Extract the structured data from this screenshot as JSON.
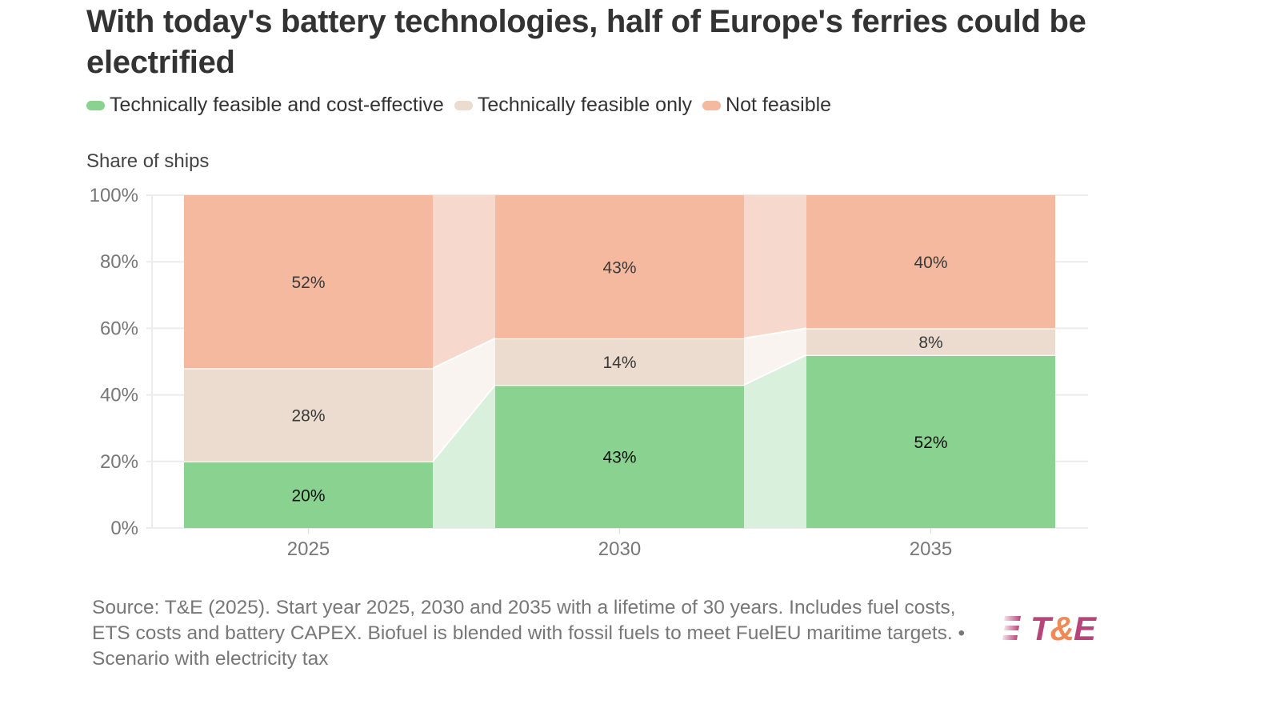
{
  "chart_data": {
    "type": "bar",
    "stacked": true,
    "normalized": true,
    "title": "With today's battery technologies, half of Europe's ferries could be electrified",
    "ylabel": "Share of ships",
    "xlabel": "",
    "categories": [
      "2025",
      "2030",
      "2035"
    ],
    "series": [
      {
        "name": "Technically feasible and cost-effective",
        "color": "#8ad28f",
        "connector_color": "#d8f0dc",
        "label_class": "dark",
        "values": [
          20,
          43,
          52
        ]
      },
      {
        "name": "Technically feasible only",
        "color": "#ebdccf",
        "connector_color": "#f9f4f0",
        "label_class": "",
        "values": [
          28,
          14,
          8
        ]
      },
      {
        "name": "Not feasible",
        "color": "#f4b99e",
        "connector_color": "#f6d9cc",
        "label_class": "",
        "values": [
          52,
          43,
          40
        ]
      }
    ],
    "data_labels": [
      [
        "20%",
        "43%",
        "52%"
      ],
      [
        "28%",
        "14%",
        "8%"
      ],
      [
        "52%",
        "43%",
        "40%"
      ]
    ],
    "ylim": [
      0,
      100
    ],
    "yticks": [
      0,
      20,
      40,
      60,
      80,
      100
    ],
    "ytick_labels": [
      "0%",
      "20%",
      "40%",
      "60%",
      "80%",
      "100%"
    ],
    "grid": true,
    "legend_position": "top-left"
  },
  "legend": {
    "items": [
      {
        "label": "Technically feasible and cost-effective",
        "color": "#8ad28f"
      },
      {
        "label": "Technically feasible only",
        "color": "#ebdccf"
      },
      {
        "label": "Not feasible",
        "color": "#f4b99e"
      }
    ]
  },
  "header": {
    "title": "With today's battery technologies, half of Europe's ferries could be electrified"
  },
  "axis": {
    "y_title": "Share of ships"
  },
  "footer": {
    "source": "Source: T&E (2025). Start year 2025, 2030 and 2035 with a lifetime of 30 years. Includes fuel costs, ETS costs and battery CAPEX. Biofuel is blended with fossil fuels to meet FuelEU maritime targets. • Scenario with electricity tax",
    "logo": {
      "t": "T",
      "amp": "&",
      "e": "E",
      "icon": "speed-lines-icon"
    }
  }
}
